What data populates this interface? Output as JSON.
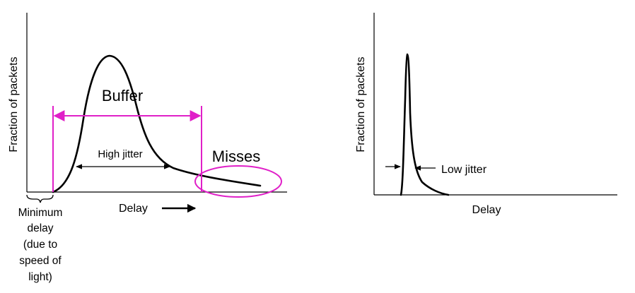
{
  "left_panel": {
    "y_axis_label": "Fraction of packets",
    "x_axis_label": "Delay",
    "buffer_label": "Buffer",
    "high_jitter_label": "High jitter",
    "misses_label": "Misses",
    "min_delay_lines": [
      "Minimum",
      "delay",
      "(due to",
      "speed of",
      "light)"
    ]
  },
  "right_panel": {
    "y_axis_label": "Fraction of packets",
    "x_axis_label": "Delay",
    "low_jitter_label": "Low jitter"
  },
  "colors": {
    "ink": "#000000",
    "highlight": "#e020c8",
    "background": "#ffffff"
  }
}
